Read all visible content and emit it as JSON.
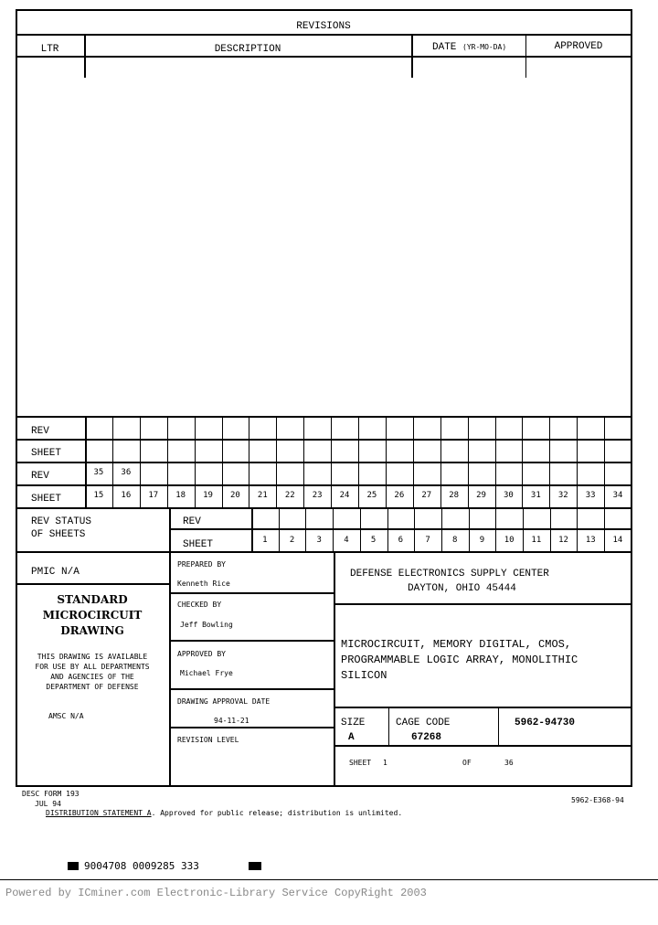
{
  "revisions": {
    "title": "REVISIONS",
    "columns": {
      "ltr": "LTR",
      "description": "DESCRIPTION",
      "date": "DATE",
      "date_format": "(YR-MO-DA)",
      "approved": "APPROVED"
    }
  },
  "rev_grid": {
    "rev_label": "REV",
    "sheet_label": "SHEET",
    "upper_rev": [
      "",
      "",
      "",
      "",
      "",
      "",
      "",
      "",
      "",
      "",
      "",
      "",
      "",
      "",
      "",
      "",
      "",
      "",
      "",
      ""
    ],
    "upper_sheet": [
      "",
      "",
      "",
      "",
      "",
      "",
      "",
      "",
      "",
      "",
      "",
      "",
      "",
      "",
      "",
      "",
      "",
      "",
      "",
      ""
    ],
    "lower_rev": [
      "35",
      "36",
      "",
      "",
      "",
      "",
      "",
      "",
      "",
      "",
      "",
      "",
      "",
      "",
      "",
      "",
      "",
      "",
      "",
      ""
    ],
    "lower_sheet": [
      "15",
      "16",
      "17",
      "18",
      "19",
      "20",
      "21",
      "22",
      "23",
      "24",
      "25",
      "26",
      "27",
      "28",
      "29",
      "30",
      "31",
      "32",
      "33",
      "34"
    ]
  },
  "rev_status": {
    "label_line1": "REV STATUS",
    "label_line2": "OF SHEETS",
    "rev_label": "REV",
    "sheet_label": "SHEET",
    "sheets": [
      "1",
      "2",
      "3",
      "4",
      "5",
      "6",
      "7",
      "8",
      "9",
      "10",
      "11",
      "12",
      "13",
      "14"
    ]
  },
  "title_block": {
    "pmic": "PMIC N/A",
    "standard_line1": "STANDARD",
    "standard_line2": "MICROCIRCUIT",
    "standard_line3": "DRAWING",
    "availability": [
      "THIS DRAWING IS AVAILABLE",
      "FOR USE BY ALL DEPARTMENTS",
      "AND AGENCIES OF THE",
      "DEPARTMENT OF DEFENSE"
    ],
    "amsc": "AMSC N/A",
    "prepared_by_label": "PREPARED BY",
    "prepared_by": "Kenneth Rice",
    "checked_by_label": "CHECKED BY",
    "checked_by": "Jeff Bowling",
    "approved_by_label": "APPROVED BY",
    "approved_by": "Michael Frye",
    "approval_date_label": "DRAWING APPROVAL DATE",
    "approval_date": "94-11-21",
    "revision_level_label": "REVISION LEVEL",
    "agency_line1": "DEFENSE ELECTRONICS SUPPLY CENTER",
    "agency_line2": "DAYTON, OHIO  45444",
    "title_line1": "MICROCIRCUIT, MEMORY DIGITAL, CMOS,",
    "title_line2": "PROGRAMMABLE LOGIC ARRAY, MONOLITHIC",
    "title_line3": "SILICON",
    "size_label": "SIZE",
    "size": "A",
    "cage_label": "CAGE CODE",
    "cage": "67268",
    "drawing_number": "5962-94730",
    "sheet_label": "SHEET",
    "sheet": "1",
    "of_label": "OF",
    "of": "36"
  },
  "footer": {
    "form": "DESC FORM 193",
    "form_date": "JUL 94",
    "dist_label": "DISTRIBUTION STATEMENT A",
    "dist_text": ". Approved for public release; distribution is unlimited.",
    "doc_code": "5962-E368-94",
    "barcode": "9004708 0009285 333",
    "powered": "Powered by ICminer.com Electronic-Library Service CopyRight 2003"
  }
}
